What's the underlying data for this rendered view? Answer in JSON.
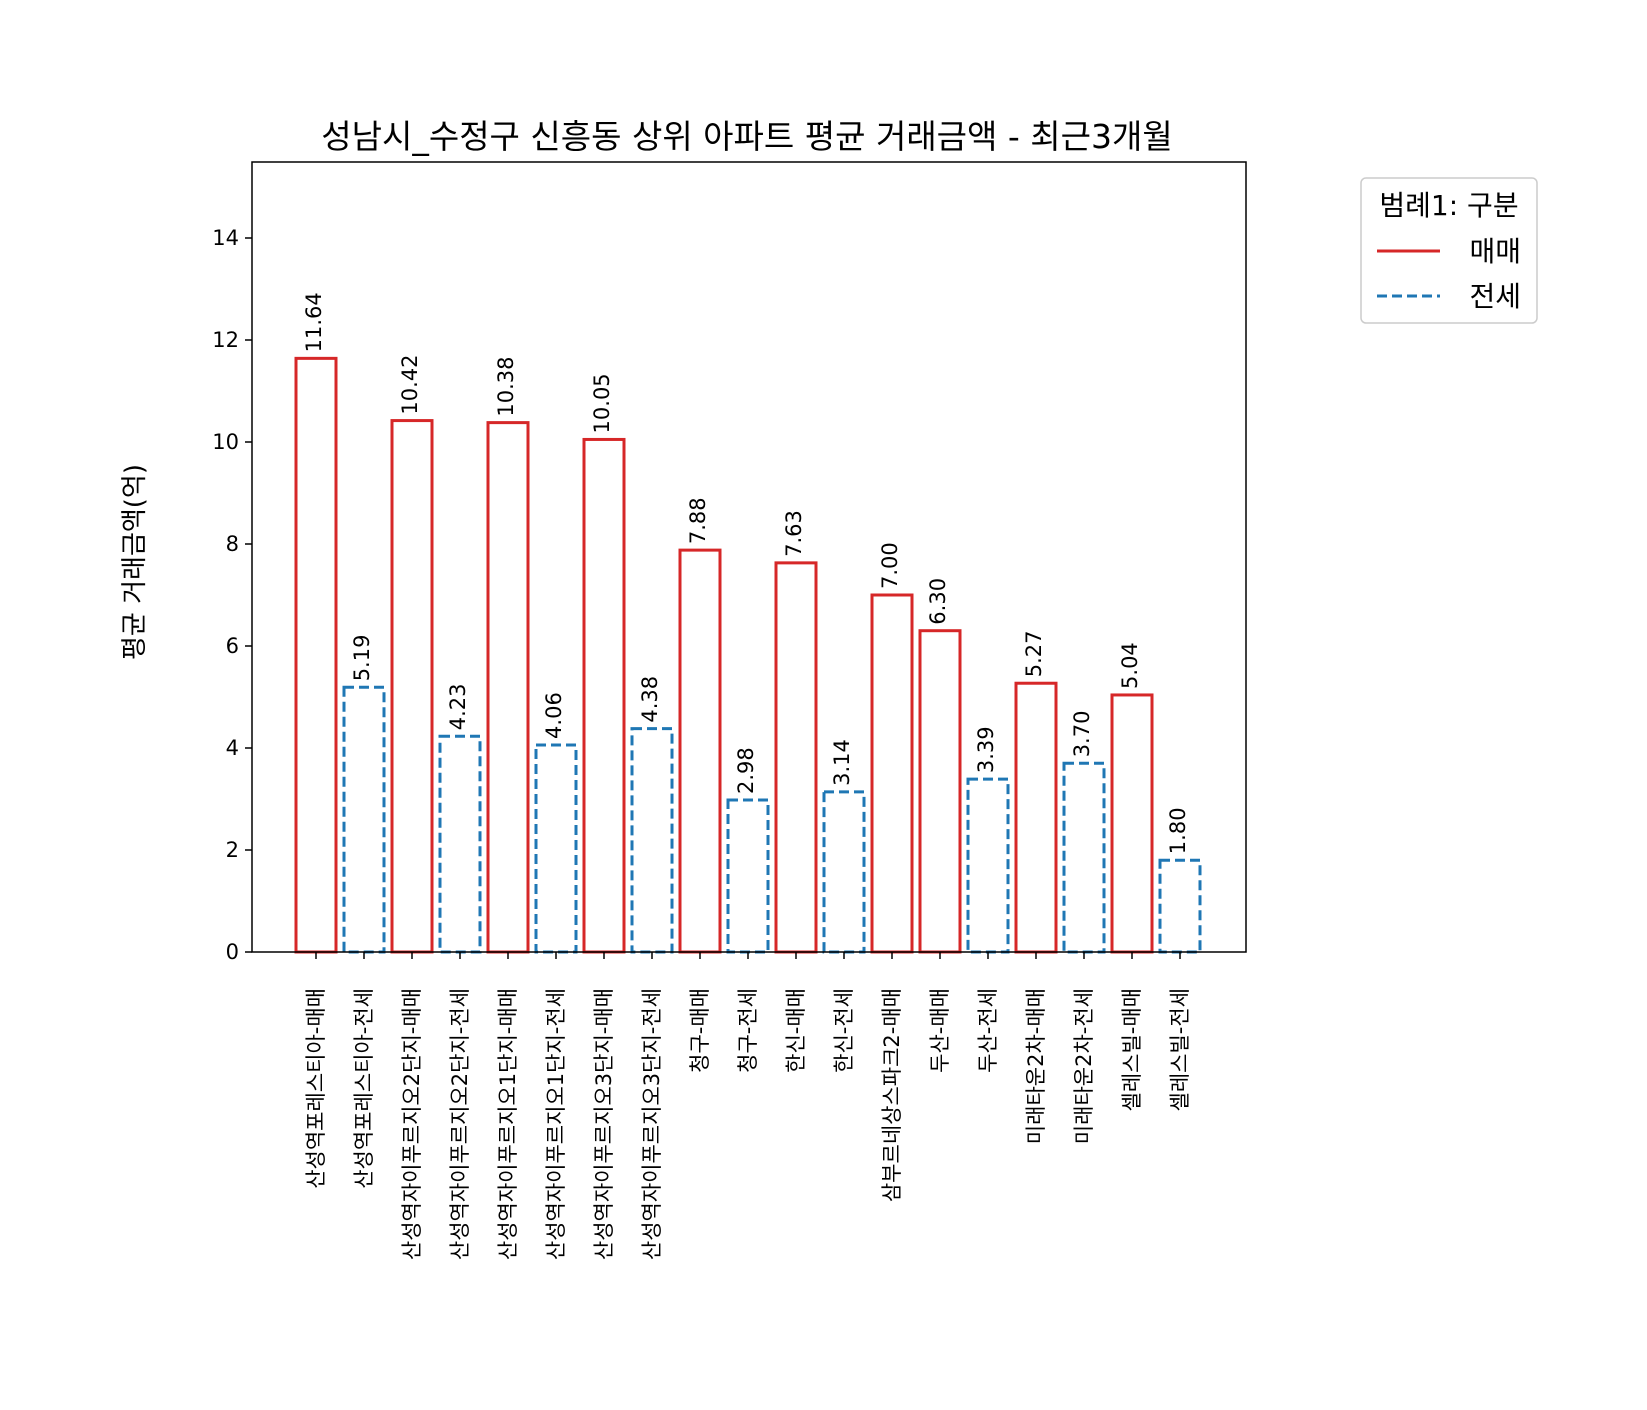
{
  "chart_data": {
    "type": "bar",
    "title": "성남시_수정구 신흥동 상위 아파트 평균 거래금액 - 최근3개월",
    "xlabel": "",
    "ylabel": "평균 거래금액(억)",
    "ylim": [
      0,
      15.5
    ],
    "yticks": [
      0,
      2,
      4,
      6,
      8,
      10,
      12,
      14
    ],
    "grid": false,
    "legend": {
      "title": "범례1: 구분",
      "position": "outside-right-top",
      "entries": [
        {
          "label": "매매",
          "color": "#d62728",
          "style": "solid"
        },
        {
          "label": "전세",
          "color": "#1f77b4",
          "style": "dashed"
        }
      ]
    },
    "categories": [
      "산성역포레스티아-매매",
      "산성역포레스티아-전세",
      "산성역자이푸르지오2단지-매매",
      "산성역자이푸르지오2단지-전세",
      "산성역자이푸르지오1단지-매매",
      "산성역자이푸르지오1단지-전세",
      "산성역자이푸르지오3단지-매매",
      "산성역자이푸르지오3단지-전세",
      "청구-매매",
      "청구-전세",
      "한신-매매",
      "한신-전세",
      "삼부르네상스파크2-매매",
      "두산-매매",
      "두산-전세",
      "미래타운2차-매매",
      "미래타운2차-전세",
      "셀레스빌-매매",
      "셀레스빌-전세"
    ],
    "values": [
      11.64,
      5.19,
      10.42,
      4.23,
      10.38,
      4.06,
      10.05,
      4.38,
      7.88,
      2.98,
      7.63,
      3.14,
      7.0,
      6.3,
      3.39,
      5.27,
      3.7,
      5.04,
      1.8
    ],
    "value_labels": [
      "11.64",
      "5.19",
      "10.42",
      "4.23",
      "10.38",
      "4.06",
      "10.05",
      "4.38",
      "7.88",
      "2.98",
      "7.63",
      "3.14",
      "7.00",
      "6.30",
      "3.39",
      "5.27",
      "3.70",
      "5.04",
      "1.80"
    ],
    "bar_kind": [
      "매매",
      "전세",
      "매매",
      "전세",
      "매매",
      "전세",
      "매매",
      "전세",
      "매매",
      "전세",
      "매매",
      "전세",
      "매매",
      "매매",
      "전세",
      "매매",
      "전세",
      "매매",
      "전세"
    ]
  }
}
